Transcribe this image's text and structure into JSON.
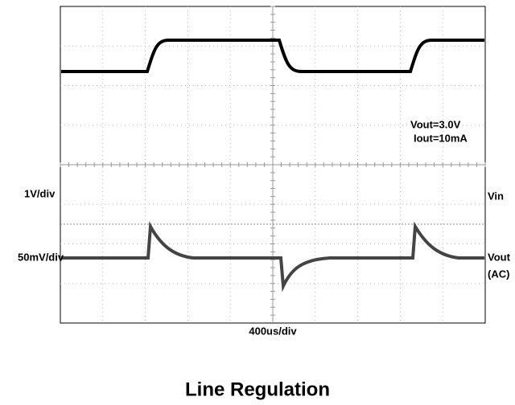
{
  "scope": {
    "annotations": [
      "Vout=3.0V",
      "Iout=10mA"
    ],
    "left_labels": [
      "1V/div",
      "50mV/div"
    ],
    "right_labels": [
      "Vin",
      "Vout",
      "(AC)"
    ],
    "time_scale": "400us/div"
  },
  "caption": "Line Regulation"
}
